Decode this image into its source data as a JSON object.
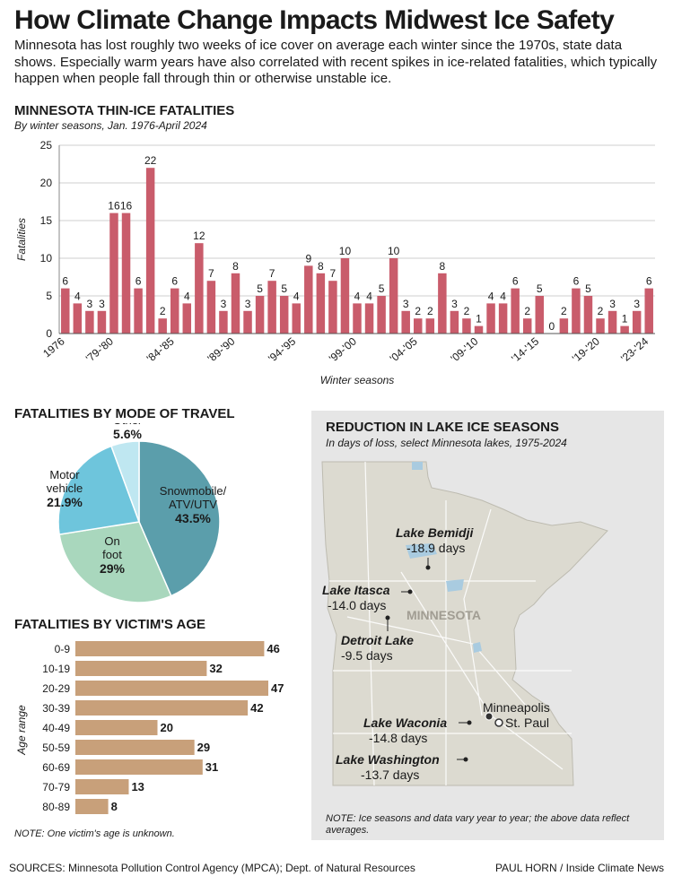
{
  "headline": "How Climate Change Impacts Midwest Ice Safety",
  "intro": "Minnesota has lost roughly two weeks of ice cover on average each winter since the 1970s, state data shows. Especially warm years have also correlated with recent spikes in ice-related fatalities, which typically happen when people fall through thin or otherwise unstable ice.",
  "colors": {
    "bar": "#c95c6b",
    "age_bar": "#c8a07a",
    "map_land": "#dcdad0",
    "map_water": "#a9cbe0",
    "map_bg": "#e6e6e6"
  },
  "chart_data": [
    {
      "type": "bar",
      "title": "MINNESOTA THIN-ICE FATALITIES",
      "subtitle": "By winter seasons, Jan. 1976-April 2024",
      "xlabel": "Winter seasons",
      "ylabel": "Fatalities",
      "ylim": [
        0,
        25
      ],
      "yticks": [
        0,
        5,
        10,
        15,
        20,
        25
      ],
      "grid": true,
      "tick_labels": [
        {
          "index": 0,
          "label": "1976"
        },
        {
          "index": 4,
          "label": "'79-'80"
        },
        {
          "index": 9,
          "label": "'84-'85"
        },
        {
          "index": 14,
          "label": "'89-'90"
        },
        {
          "index": 19,
          "label": "'94-'95"
        },
        {
          "index": 24,
          "label": "'99-'00"
        },
        {
          "index": 29,
          "label": "'04-'05"
        },
        {
          "index": 34,
          "label": "'09-'10"
        },
        {
          "index": 39,
          "label": "'14-'15"
        },
        {
          "index": 44,
          "label": "'19-'20"
        },
        {
          "index": 48,
          "label": "'23-'24"
        }
      ],
      "values": [
        6,
        4,
        3,
        3,
        16,
        16,
        6,
        22,
        2,
        6,
        4,
        12,
        7,
        3,
        8,
        3,
        5,
        7,
        5,
        4,
        9,
        8,
        7,
        10,
        4,
        4,
        5,
        10,
        3,
        2,
        2,
        8,
        3,
        2,
        1,
        4,
        4,
        6,
        2,
        5,
        0,
        2,
        6,
        5,
        2,
        3,
        1,
        3,
        6
      ]
    },
    {
      "type": "pie",
      "title": "FATALITIES BY MODE OF TRAVEL",
      "slices": [
        {
          "label": "Snowmobile/ ATV/UTV",
          "pct_label": "43.5%",
          "value": 43.5,
          "color": "#5b9eab"
        },
        {
          "label": "On foot",
          "pct_label": "29%",
          "value": 29,
          "color": "#a9d7bd"
        },
        {
          "label": "Motor vehicle",
          "pct_label": "21.9%",
          "value": 21.9,
          "color": "#6ec5dc"
        },
        {
          "label": "Other",
          "pct_label": "5.6%",
          "value": 5.6,
          "color": "#bfe7f1"
        }
      ]
    },
    {
      "type": "bar",
      "orientation": "horizontal",
      "title": "FATALITIES BY VICTIM'S AGE",
      "ylabel": "Age range",
      "categories": [
        "0-9",
        "10-19",
        "20-29",
        "30-39",
        "40-49",
        "50-59",
        "60-69",
        "70-79",
        "80-89"
      ],
      "values": [
        46,
        32,
        47,
        42,
        20,
        29,
        31,
        13,
        8
      ],
      "note": "NOTE: One victim's age is unknown."
    }
  ],
  "map": {
    "title": "REDUCTION IN LAKE ICE SEASONS",
    "subtitle": "In days of loss, select Minnesota lakes, 1975-2024",
    "state_label": "MINNESOTA",
    "lakes": [
      {
        "name": "Lake Bemidji",
        "value": "-18.9 days"
      },
      {
        "name": "Lake Itasca",
        "value": "-14.0 days"
      },
      {
        "name": "Detroit Lake",
        "value": "-9.5 days"
      },
      {
        "name": "Lake Waconia",
        "value": "-14.8 days"
      },
      {
        "name": "Lake Washington",
        "value": "-13.7 days"
      }
    ],
    "cities": [
      "Minneapolis",
      "St. Paul"
    ],
    "note": "NOTE: Ice seasons and data vary year to year; the above data reflect averages."
  },
  "footer": {
    "sources": "SOURCES: Minnesota Pollution Control Agency (MPCA); Dept. of Natural Resources",
    "credit": "PAUL HORN / Inside Climate News"
  }
}
